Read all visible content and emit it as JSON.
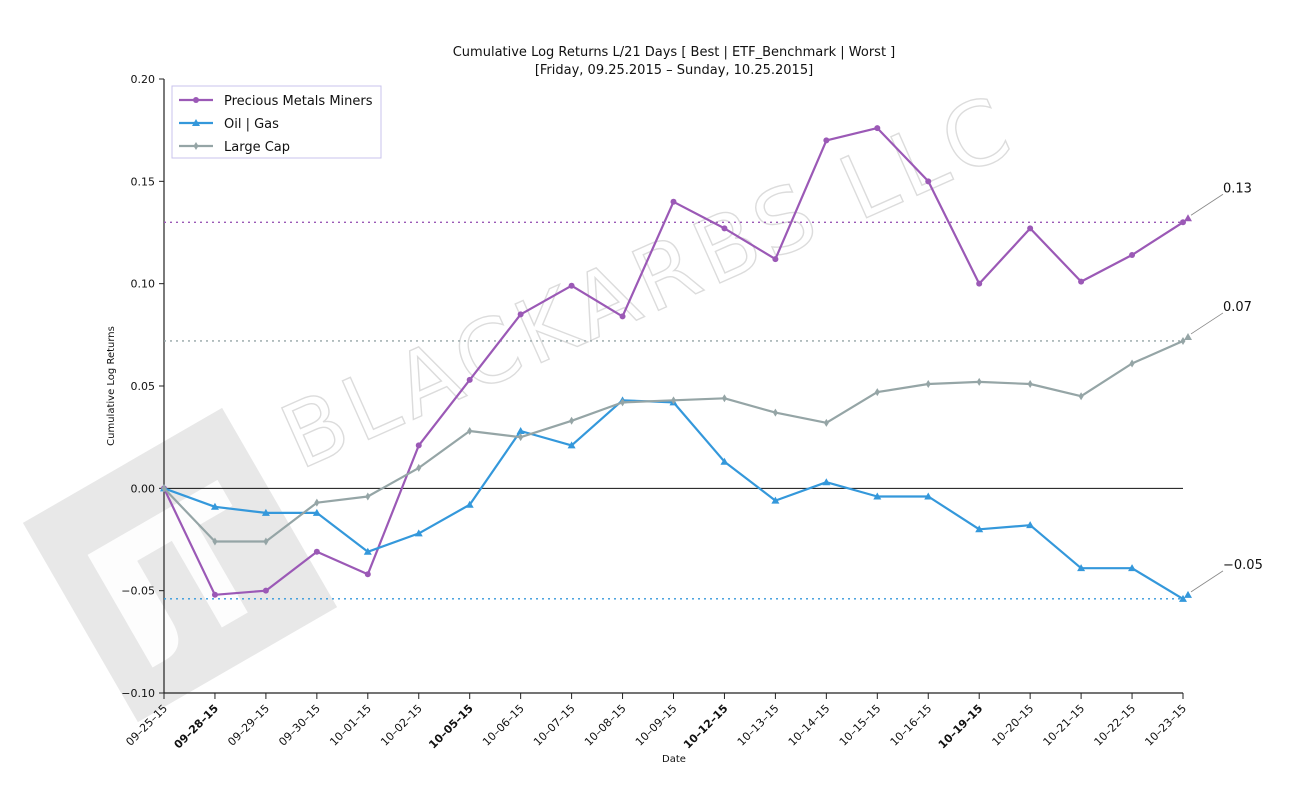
{
  "chart_data": {
    "type": "line",
    "title": "Cumulative Log Returns L/21 Days [ Best | ETF_Benchmark | Worst ]",
    "subtitle": "[Friday, 09.25.2015 – Sunday, 10.25.2015]",
    "xlabel": "Date",
    "ylabel": "Cumulative Log Returns",
    "ylim": [
      -0.1,
      0.2
    ],
    "yticks": [
      -0.1,
      -0.05,
      0.0,
      0.05,
      0.1,
      0.15,
      0.2
    ],
    "ytick_labels": [
      "−0.10",
      "−0.05",
      "0.00",
      "0.05",
      "0.10",
      "0.15",
      "0.20"
    ],
    "categories": [
      "09-25-15",
      "09-28-15",
      "09-29-15",
      "09-30-15",
      "10-01-15",
      "10-02-15",
      "10-05-15",
      "10-06-15",
      "10-07-15",
      "10-08-15",
      "10-09-15",
      "10-12-15",
      "10-13-15",
      "10-14-15",
      "10-15-15",
      "10-16-15",
      "10-19-15",
      "10-20-15",
      "10-21-15",
      "10-22-15",
      "10-23-15"
    ],
    "xtick_labels": [
      "09–25–15",
      "09–28–15",
      "09–29–15",
      "09–30–15",
      "10–01–15",
      "10–02–15",
      "10–05–15",
      "10–06–15",
      "10–07–15",
      "10–08–15",
      "10–09–15",
      "10–12–15",
      "10–13–15",
      "10–14–15",
      "10–15–15",
      "10–16–15",
      "10–19–15",
      "10–20–15",
      "10–21–15",
      "10–22–15",
      "10–23–15"
    ],
    "bold_xticks": [
      1,
      6,
      11,
      16
    ],
    "legend_position": "top-left",
    "grid": false,
    "series": [
      {
        "name": "Precious Metals Miners",
        "color": "#9b59b6",
        "marker": "circle",
        "values": [
          0.0,
          -0.052,
          -0.05,
          -0.031,
          -0.042,
          0.021,
          0.053,
          0.085,
          0.099,
          0.084,
          0.14,
          0.127,
          0.112,
          0.17,
          0.176,
          0.15,
          0.1,
          0.127,
          0.101,
          0.114,
          0.13
        ],
        "end_value": 0.13,
        "end_label": "0.13"
      },
      {
        "name": "Oil | Gas",
        "color": "#3498db",
        "marker": "triangle",
        "values": [
          0.0,
          -0.009,
          -0.012,
          -0.012,
          -0.031,
          -0.022,
          -0.008,
          0.028,
          0.021,
          0.043,
          0.042,
          0.013,
          -0.006,
          0.003,
          -0.004,
          -0.004,
          -0.02,
          -0.018,
          -0.039,
          -0.039,
          -0.054
        ],
        "end_value": -0.054,
        "end_label": "−0.05"
      },
      {
        "name": "Large Cap",
        "color": "#95a5a6",
        "marker": "diamond",
        "values": [
          0.0,
          -0.026,
          -0.026,
          -0.007,
          -0.004,
          0.01,
          0.028,
          0.025,
          0.033,
          0.042,
          0.043,
          0.044,
          0.037,
          0.032,
          0.047,
          0.051,
          0.052,
          0.051,
          0.045,
          0.061,
          0.072
        ],
        "end_value": 0.072,
        "end_label": "0.07"
      }
    ]
  },
  "watermark": {
    "text": "BLACKARBS LLC",
    "logo_color": "#e6e6e6",
    "text_color": "#dcdcdc"
  }
}
